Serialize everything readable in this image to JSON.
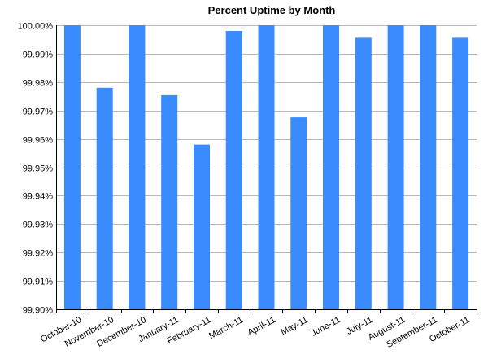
{
  "chart_data": {
    "type": "bar",
    "title": "Percent Uptime by Month",
    "xlabel": "",
    "ylabel": "",
    "categories": [
      "October-10",
      "November-10",
      "December-10",
      "January-11",
      "February-11",
      "March-11",
      "April-11",
      "May-11",
      "June-11",
      "July-11",
      "August-11",
      "September-11",
      "October-11"
    ],
    "values": [
      100.0,
      99.978,
      100.0,
      99.9754,
      99.958,
      99.998,
      100.0,
      99.9676,
      100.0,
      99.9956,
      100.0,
      100.0,
      99.9956
    ],
    "ylim": [
      99.9,
      100.0
    ],
    "yticks": [
      "99.90%",
      "99.91%",
      "99.92%",
      "99.93%",
      "99.94%",
      "99.95%",
      "99.96%",
      "99.97%",
      "99.98%",
      "99.99%",
      "100.00%"
    ],
    "ytick_values": [
      99.9,
      99.91,
      99.92,
      99.93,
      99.94,
      99.95,
      99.96,
      99.97,
      99.98,
      99.99,
      100.0
    ],
    "grid": true,
    "legend": "none",
    "bar_color": "#3a8bfe"
  }
}
